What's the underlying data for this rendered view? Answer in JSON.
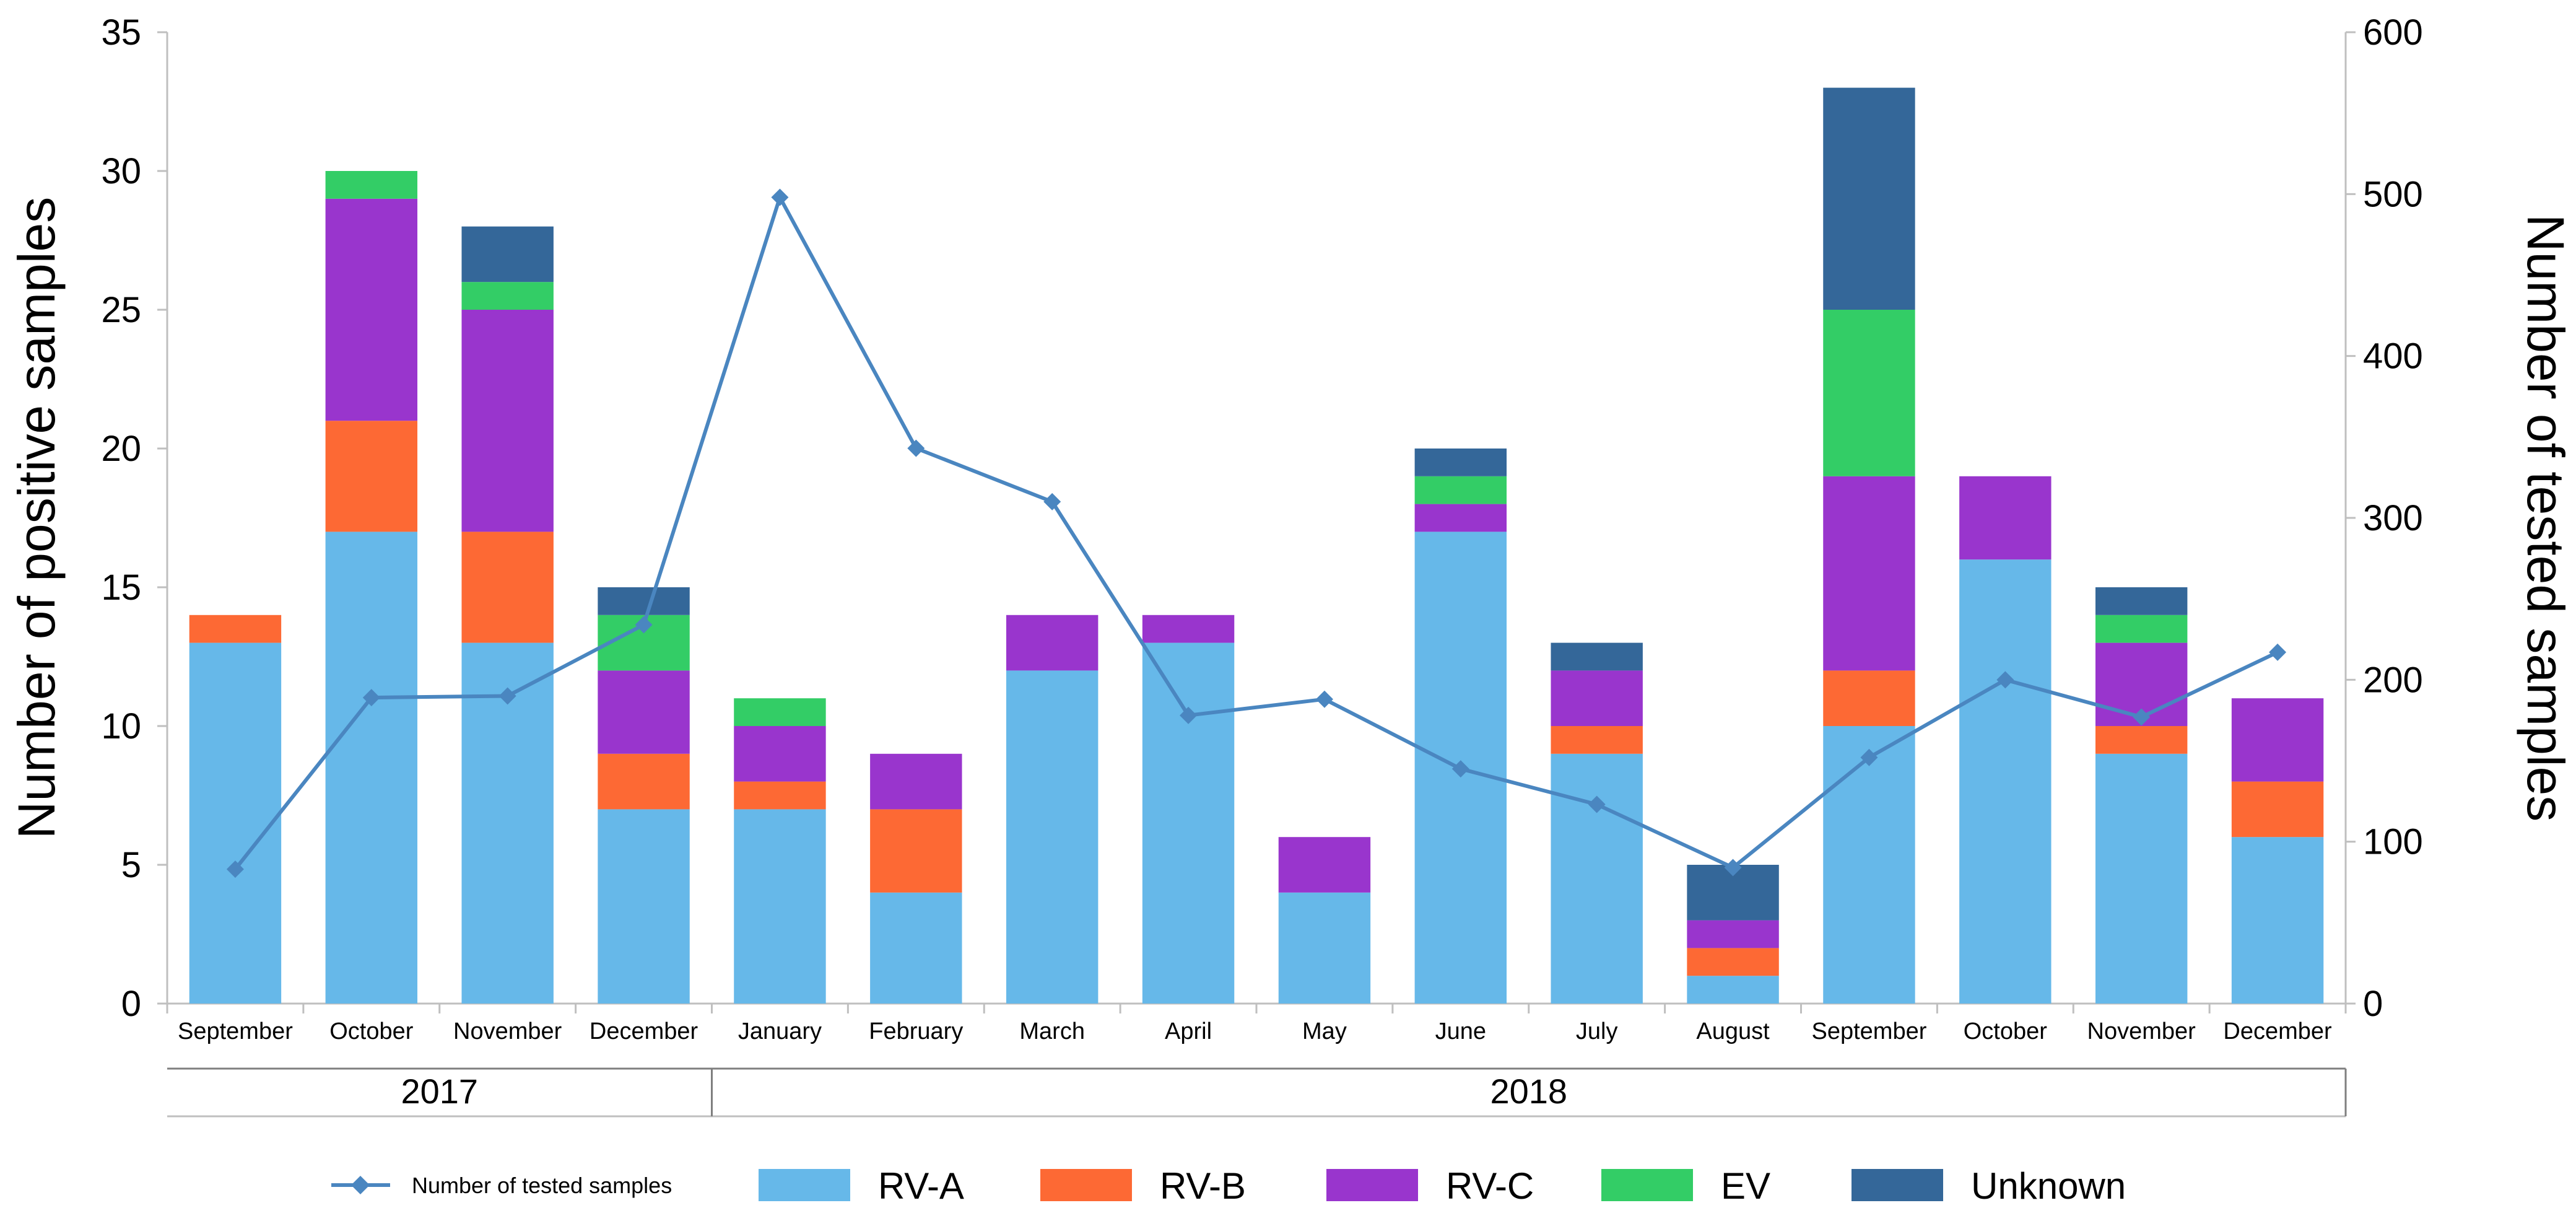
{
  "chart_data": {
    "type": "bar",
    "stacked": true,
    "categories": [
      "September",
      "October",
      "November",
      "December",
      "January",
      "February",
      "March",
      "April",
      "May",
      "June",
      "July",
      "August",
      "September",
      "October",
      "November",
      "December"
    ],
    "groups": [
      {
        "label": "2017",
        "from": 0,
        "to": 3
      },
      {
        "label": "2018",
        "from": 4,
        "to": 15
      }
    ],
    "ylabel": "Number of positive samples",
    "ylabel_right": "Number of tested samples",
    "ylim": [
      0,
      35
    ],
    "ylim_right": [
      0,
      600
    ],
    "yticks": [
      0,
      5,
      10,
      15,
      20,
      25,
      30,
      35
    ],
    "yticks_right": [
      0,
      100,
      200,
      300,
      400,
      500,
      600
    ],
    "legend_position": "bottom",
    "series": [
      {
        "name": "RV-A",
        "color": "#66b8e9",
        "values": [
          13,
          17,
          13,
          7,
          7,
          4,
          12,
          13,
          4,
          17,
          9,
          1,
          10,
          16,
          9,
          6
        ]
      },
      {
        "name": "RV-B",
        "color": "#fd6934",
        "values": [
          1,
          4,
          4,
          2,
          1,
          3,
          0,
          0,
          0,
          0,
          1,
          1,
          2,
          0,
          1,
          2
        ]
      },
      {
        "name": "RV-C",
        "color": "#9935cd",
        "values": [
          0,
          8,
          8,
          3,
          2,
          2,
          2,
          1,
          2,
          1,
          2,
          1,
          7,
          3,
          3,
          3
        ]
      },
      {
        "name": "EV",
        "color": "#33cd66",
        "values": [
          0,
          1,
          1,
          2,
          1,
          0,
          0,
          0,
          0,
          1,
          0,
          0,
          6,
          0,
          1,
          0
        ]
      },
      {
        "name": "Unknown",
        "color": "#346799",
        "values": [
          0,
          0,
          2,
          1,
          0,
          0,
          0,
          0,
          0,
          1,
          1,
          2,
          8,
          0,
          1,
          0
        ]
      }
    ],
    "line_series": {
      "name": "Number of tested samples",
      "color": "#4a86c0",
      "axis": "right",
      "values": [
        83,
        189,
        190,
        234,
        498,
        343,
        310,
        178,
        188,
        145,
        123,
        84,
        152,
        200,
        177,
        217
      ]
    }
  }
}
